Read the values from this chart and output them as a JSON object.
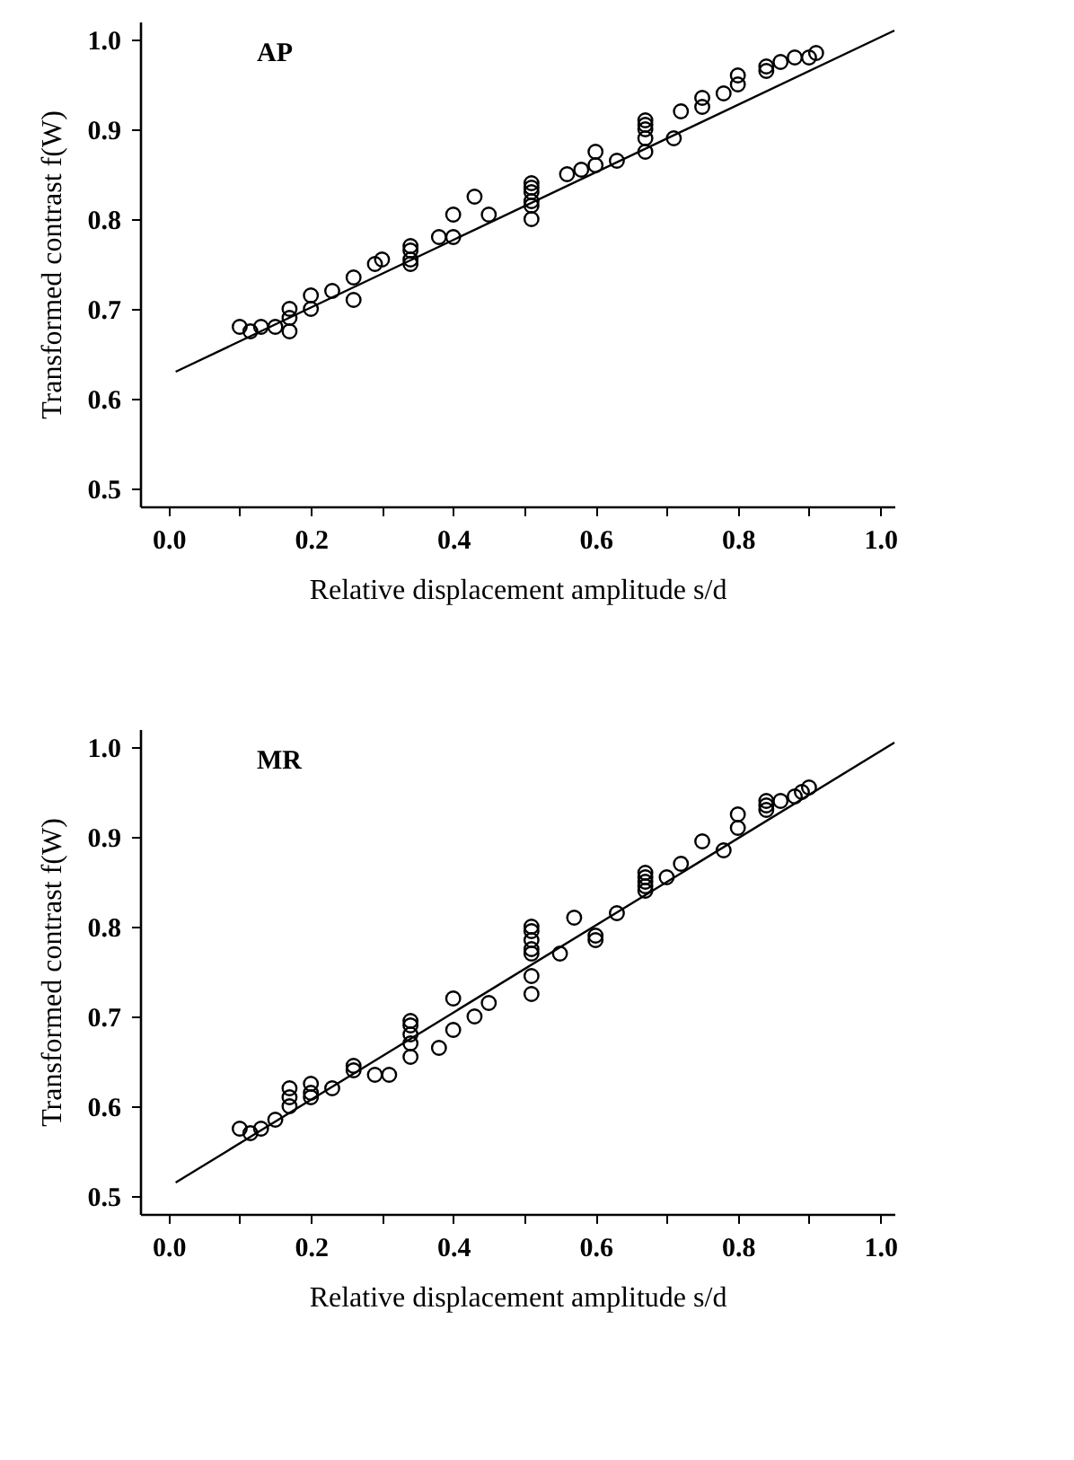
{
  "chart_data": [
    {
      "type": "scatter",
      "xlabel": "Relative displacement amplitude s/d",
      "ylabel": "Transformed contrast  f(W)",
      "annotations": [
        "AP"
      ],
      "xlim": [
        -0.04,
        1.02
      ],
      "ylim": [
        0.48,
        1.02
      ],
      "xticks": [
        {
          "value": 0,
          "label": "0.0"
        },
        {
          "value": 0.1,
          "label": null
        },
        0.2,
        {
          "value": 0.3,
          "label": null
        },
        0.4,
        {
          "value": 0.5,
          "label": null
        },
        0.6,
        {
          "value": 0.7,
          "label": null
        },
        0.8,
        {
          "value": 0.9,
          "label": null
        },
        {
          "value": 1,
          "label": "1.0"
        }
      ],
      "yticks": [
        0.5,
        0.6,
        0.7,
        0.8,
        0.9,
        {
          "value": 1,
          "label": "1.0"
        }
      ],
      "grid": false,
      "series": [
        {
          "color": "#000000",
          "marker": "circle",
          "x": [
            0.1,
            0.115,
            0.13,
            0.15,
            0.17,
            0.17,
            0.17,
            0.2,
            0.2,
            0.23,
            0.26,
            0.26,
            0.29,
            0.3,
            0.34,
            0.34,
            0.34,
            0.34,
            0.38,
            0.4,
            0.4,
            0.43,
            0.45,
            0.51,
            0.51,
            0.51,
            0.51,
            0.51,
            0.51,
            0.56,
            0.58,
            0.6,
            0.6,
            0.63,
            0.67,
            0.67,
            0.67,
            0.67,
            0.67,
            0.71,
            0.72,
            0.75,
            0.75,
            0.78,
            0.8,
            0.8,
            0.84,
            0.84,
            0.86,
            0.88,
            0.9,
            0.91
          ],
          "values": [
            0.68,
            0.675,
            0.68,
            0.68,
            0.7,
            0.69,
            0.675,
            0.715,
            0.7,
            0.72,
            0.735,
            0.71,
            0.75,
            0.755,
            0.77,
            0.765,
            0.755,
            0.75,
            0.78,
            0.805,
            0.78,
            0.825,
            0.805,
            0.84,
            0.835,
            0.83,
            0.82,
            0.815,
            0.8,
            0.85,
            0.855,
            0.875,
            0.86,
            0.865,
            0.91,
            0.905,
            0.9,
            0.89,
            0.875,
            0.89,
            0.92,
            0.925,
            0.935,
            0.94,
            0.96,
            0.95,
            0.97,
            0.965,
            0.975,
            0.98,
            0.98,
            0.985
          ]
        },
        {
          "type": "line",
          "color": "#000000",
          "x": [
            0.01,
            1.02
          ],
          "values": [
            0.63,
            1.01
          ]
        }
      ]
    },
    {
      "type": "scatter",
      "xlabel": "Relative displacement amplitude s/d",
      "ylabel": "Transformed contrast  f(W)",
      "annotations": [
        "MR"
      ],
      "xlim": [
        -0.04,
        1.02
      ],
      "ylim": [
        0.48,
        1.02
      ],
      "xticks": [
        {
          "value": 0,
          "label": "0.0"
        },
        {
          "value": 0.1,
          "label": null
        },
        0.2,
        {
          "value": 0.3,
          "label": null
        },
        0.4,
        {
          "value": 0.5,
          "label": null
        },
        0.6,
        {
          "value": 0.7,
          "label": null
        },
        0.8,
        {
          "value": 0.9,
          "label": null
        },
        {
          "value": 1,
          "label": "1.0"
        }
      ],
      "yticks": [
        0.5,
        0.6,
        0.7,
        0.8,
        0.9,
        {
          "value": 1,
          "label": "1.0"
        }
      ],
      "grid": false,
      "series": [
        {
          "color": "#000000",
          "marker": "circle",
          "x": [
            0.1,
            0.115,
            0.13,
            0.15,
            0.17,
            0.17,
            0.17,
            0.2,
            0.2,
            0.2,
            0.23,
            0.26,
            0.26,
            0.29,
            0.31,
            0.34,
            0.34,
            0.34,
            0.34,
            0.34,
            0.38,
            0.4,
            0.4,
            0.43,
            0.45,
            0.51,
            0.51,
            0.51,
            0.51,
            0.51,
            0.51,
            0.51,
            0.55,
            0.57,
            0.6,
            0.6,
            0.63,
            0.67,
            0.67,
            0.67,
            0.67,
            0.67,
            0.7,
            0.72,
            0.75,
            0.78,
            0.8,
            0.8,
            0.84,
            0.84,
            0.84,
            0.86,
            0.88,
            0.89,
            0.9
          ],
          "values": [
            0.575,
            0.57,
            0.575,
            0.585,
            0.62,
            0.61,
            0.6,
            0.625,
            0.615,
            0.61,
            0.62,
            0.645,
            0.64,
            0.635,
            0.635,
            0.695,
            0.69,
            0.68,
            0.67,
            0.655,
            0.665,
            0.72,
            0.685,
            0.7,
            0.715,
            0.8,
            0.795,
            0.785,
            0.775,
            0.77,
            0.745,
            0.725,
            0.77,
            0.81,
            0.79,
            0.785,
            0.815,
            0.86,
            0.855,
            0.85,
            0.845,
            0.84,
            0.855,
            0.87,
            0.895,
            0.885,
            0.925,
            0.91,
            0.94,
            0.935,
            0.93,
            0.94,
            0.945,
            0.95,
            0.955
          ]
        },
        {
          "type": "line",
          "color": "#000000",
          "x": [
            0.01,
            1.02
          ],
          "values": [
            0.515,
            1.005
          ]
        }
      ]
    }
  ]
}
